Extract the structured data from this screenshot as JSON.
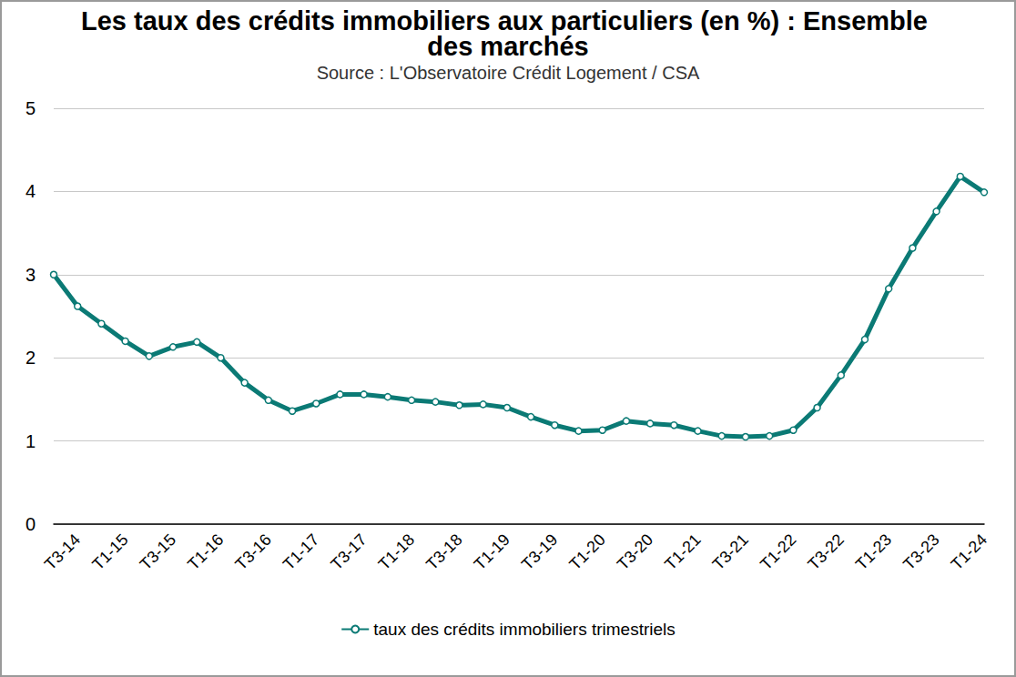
{
  "chart_data": {
    "type": "line",
    "title": "Les taux des crédits immobiliers aux particuliers (en %) : Ensemble des marchés",
    "subtitle": "Source : L'Observatoire Crédit Logement / CSA",
    "categories": [
      null,
      "T3-14",
      null,
      "T1-15",
      null,
      "T3-15",
      null,
      "T1-16",
      null,
      "T3-16",
      null,
      "T1-17",
      null,
      "T3-17",
      null,
      "T1-18",
      null,
      "T3-18",
      null,
      "T1-19",
      null,
      "T3-19",
      null,
      "T1-20",
      null,
      "T3-20",
      null,
      "T1-21",
      null,
      "T3-21",
      null,
      "T1-22",
      null,
      "T3-22",
      null,
      "T1-23",
      null,
      "T3-23",
      null,
      "T1-24"
    ],
    "series": [
      {
        "name": "taux des crédits immobiliers trimestriels",
        "color": "#0b7a75",
        "marker": "circle",
        "values": [
          3.0,
          2.62,
          2.41,
          2.2,
          2.02,
          2.13,
          2.19,
          2.0,
          1.7,
          1.49,
          1.36,
          1.45,
          1.56,
          1.56,
          1.53,
          1.49,
          1.47,
          1.43,
          1.44,
          1.4,
          1.29,
          1.19,
          1.12,
          1.13,
          1.24,
          1.21,
          1.19,
          1.12,
          1.06,
          1.05,
          1.06,
          1.13,
          1.4,
          1.79,
          2.22,
          2.83,
          3.32,
          3.76,
          4.18,
          3.99
        ]
      }
    ],
    "ylim": [
      0,
      5
    ],
    "yticks": [
      0,
      1,
      2,
      3,
      4,
      5
    ],
    "grid": true,
    "legend": "bottom"
  }
}
